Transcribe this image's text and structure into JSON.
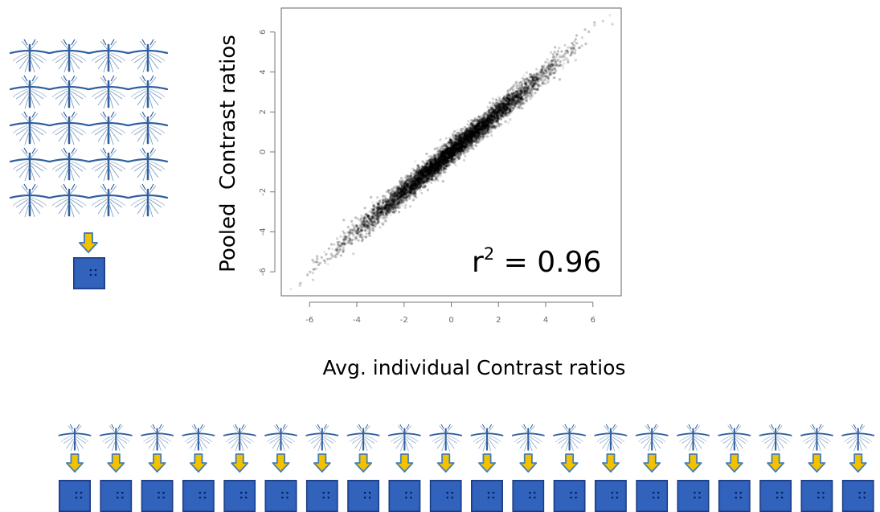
{
  "chart_data": {
    "type": "scatter",
    "title": "",
    "xlabel": "Avg. individual Contrast ratios",
    "ylabel": "Pooled  Contrast ratios",
    "xlim": [
      -7.2,
      7.2
    ],
    "ylim": [
      -7.2,
      7.2
    ],
    "x_ticks": [
      "-6",
      "-4",
      "-2",
      "0",
      "2",
      "4",
      "6"
    ],
    "y_ticks": [
      "-6",
      "-4",
      "-2",
      "0",
      "2",
      "4",
      "6"
    ],
    "grid": false,
    "point_color": "#000000",
    "annotation": {
      "base": "r",
      "superscript": "2",
      "text": " = 0.96"
    },
    "trend": {
      "slope": 1.0,
      "intercept": 0.0,
      "r_squared": 0.96
    }
  },
  "illustration": {
    "mosquito_grid": {
      "rows": 5,
      "cols": 4
    },
    "pooled_pipeline": {
      "count": 1
    },
    "individual_pipelines": {
      "count": 20
    },
    "icons": {
      "mosquito": "mosquito-icon",
      "arrow": "down-arrow-icon",
      "chip": "microarray-chip-icon"
    },
    "colors": {
      "mosquito": "#2f5f9e",
      "arrow_fill": "#f2c200",
      "arrow_stroke": "#4a7fb0",
      "chip_fill": "#2f5fb8",
      "chip_border": "#1a3a80",
      "chip_dots": "#0b1e55"
    }
  }
}
